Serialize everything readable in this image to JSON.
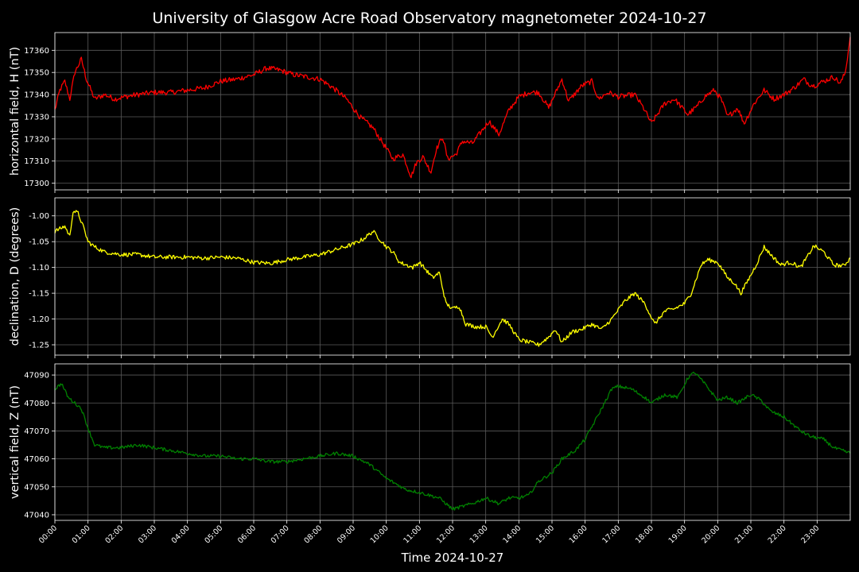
{
  "chart_data": {
    "type": "line",
    "title": "University of Glasgow Acre Road Observatory magnetometer 2024-10-27",
    "xlabel": "Time 2024-10-27",
    "x_ticks": [
      "00:00",
      "01:00",
      "02:00",
      "03:00",
      "04:00",
      "05:00",
      "06:00",
      "07:00",
      "08:00",
      "09:00",
      "10:00",
      "11:00",
      "12:00",
      "13:00",
      "14:00",
      "15:00",
      "16:00",
      "17:00",
      "18:00",
      "19:00",
      "20:00",
      "21:00",
      "22:00",
      "23:00"
    ],
    "xlim_hours": [
      0,
      24
    ],
    "grid": true,
    "background": "#000000",
    "panels": [
      {
        "ylabel": "horizontal field, H (nT)",
        "color": "#ff0000",
        "ylim": [
          17297,
          17368
        ],
        "yticks": [
          "17300",
          "17310",
          "17320",
          "17330",
          "17340",
          "17350",
          "17360"
        ],
        "noise": 1.2,
        "series": [
          {
            "x": 0.0,
            "y": 17333
          },
          {
            "x": 0.15,
            "y": 17342
          },
          {
            "x": 0.3,
            "y": 17346
          },
          {
            "x": 0.45,
            "y": 17338
          },
          {
            "x": 0.6,
            "y": 17350
          },
          {
            "x": 0.8,
            "y": 17356
          },
          {
            "x": 0.95,
            "y": 17347
          },
          {
            "x": 1.2,
            "y": 17338
          },
          {
            "x": 1.5,
            "y": 17340
          },
          {
            "x": 1.8,
            "y": 17338
          },
          {
            "x": 2.1,
            "y": 17339
          },
          {
            "x": 2.5,
            "y": 17340
          },
          {
            "x": 3.0,
            "y": 17341
          },
          {
            "x": 3.5,
            "y": 17341
          },
          {
            "x": 4.0,
            "y": 17342
          },
          {
            "x": 4.5,
            "y": 17343
          },
          {
            "x": 5.0,
            "y": 17346
          },
          {
            "x": 5.5,
            "y": 17347
          },
          {
            "x": 6.0,
            "y": 17349
          },
          {
            "x": 6.4,
            "y": 17352
          },
          {
            "x": 6.8,
            "y": 17351
          },
          {
            "x": 7.2,
            "y": 17349
          },
          {
            "x": 7.6,
            "y": 17348
          },
          {
            "x": 8.0,
            "y": 17347
          },
          {
            "x": 8.4,
            "y": 17343
          },
          {
            "x": 8.8,
            "y": 17338
          },
          {
            "x": 9.2,
            "y": 17330
          },
          {
            "x": 9.6,
            "y": 17325
          },
          {
            "x": 9.9,
            "y": 17318
          },
          {
            "x": 10.2,
            "y": 17311
          },
          {
            "x": 10.5,
            "y": 17313
          },
          {
            "x": 10.75,
            "y": 17303
          },
          {
            "x": 10.9,
            "y": 17309
          },
          {
            "x": 11.1,
            "y": 17312
          },
          {
            "x": 11.35,
            "y": 17305
          },
          {
            "x": 11.5,
            "y": 17315
          },
          {
            "x": 11.7,
            "y": 17321
          },
          {
            "x": 11.85,
            "y": 17311
          },
          {
            "x": 12.1,
            "y": 17313
          },
          {
            "x": 12.3,
            "y": 17319
          },
          {
            "x": 12.6,
            "y": 17318
          },
          {
            "x": 12.9,
            "y": 17324
          },
          {
            "x": 13.1,
            "y": 17328
          },
          {
            "x": 13.4,
            "y": 17322
          },
          {
            "x": 13.7,
            "y": 17333
          },
          {
            "x": 14.0,
            "y": 17339
          },
          {
            "x": 14.3,
            "y": 17341
          },
          {
            "x": 14.6,
            "y": 17341
          },
          {
            "x": 14.9,
            "y": 17334
          },
          {
            "x": 15.3,
            "y": 17347
          },
          {
            "x": 15.5,
            "y": 17337
          },
          {
            "x": 15.9,
            "y": 17344
          },
          {
            "x": 16.2,
            "y": 17346
          },
          {
            "x": 16.4,
            "y": 17338
          },
          {
            "x": 16.7,
            "y": 17341
          },
          {
            "x": 17.0,
            "y": 17339
          },
          {
            "x": 17.5,
            "y": 17340
          },
          {
            "x": 17.8,
            "y": 17333
          },
          {
            "x": 18.0,
            "y": 17327
          },
          {
            "x": 18.4,
            "y": 17336
          },
          {
            "x": 18.7,
            "y": 17338
          },
          {
            "x": 19.1,
            "y": 17331
          },
          {
            "x": 19.4,
            "y": 17335
          },
          {
            "x": 19.6,
            "y": 17339
          },
          {
            "x": 19.9,
            "y": 17342
          },
          {
            "x": 20.1,
            "y": 17338
          },
          {
            "x": 20.3,
            "y": 17330
          },
          {
            "x": 20.6,
            "y": 17334
          },
          {
            "x": 20.8,
            "y": 17327
          },
          {
            "x": 21.1,
            "y": 17336
          },
          {
            "x": 21.4,
            "y": 17342
          },
          {
            "x": 21.7,
            "y": 17338
          },
          {
            "x": 22.0,
            "y": 17340
          },
          {
            "x": 22.3,
            "y": 17343
          },
          {
            "x": 22.6,
            "y": 17347
          },
          {
            "x": 22.75,
            "y": 17345
          },
          {
            "x": 22.9,
            "y": 17344
          },
          {
            "x": 23.2,
            "y": 17346
          },
          {
            "x": 23.5,
            "y": 17348
          },
          {
            "x": 23.7,
            "y": 17345
          },
          {
            "x": 23.85,
            "y": 17350
          },
          {
            "x": 24.0,
            "y": 17366
          }
        ]
      },
      {
        "ylabel": "declination, D (degrees)",
        "color": "#ffff00",
        "ylim": [
          -1.27,
          -0.965
        ],
        "yticks": [
          "-1.00",
          "-1.05",
          "-1.10",
          "-1.15",
          "-1.20",
          "-1.25"
        ],
        "noise": 0.004,
        "series": [
          {
            "x": 0.0,
            "y": -1.03
          },
          {
            "x": 0.3,
            "y": -1.02
          },
          {
            "x": 0.45,
            "y": -1.04
          },
          {
            "x": 0.55,
            "y": -0.99
          },
          {
            "x": 0.7,
            "y": -0.995
          },
          {
            "x": 0.85,
            "y": -1.02
          },
          {
            "x": 1.0,
            "y": -1.05
          },
          {
            "x": 1.2,
            "y": -1.06
          },
          {
            "x": 1.5,
            "y": -1.07
          },
          {
            "x": 2.0,
            "y": -1.075
          },
          {
            "x": 2.5,
            "y": -1.075
          },
          {
            "x": 3.0,
            "y": -1.08
          },
          {
            "x": 3.5,
            "y": -1.08
          },
          {
            "x": 4.0,
            "y": -1.08
          },
          {
            "x": 4.5,
            "y": -1.082
          },
          {
            "x": 5.0,
            "y": -1.08
          },
          {
            "x": 5.5,
            "y": -1.082
          },
          {
            "x": 6.0,
            "y": -1.09
          },
          {
            "x": 6.5,
            "y": -1.092
          },
          {
            "x": 7.0,
            "y": -1.085
          },
          {
            "x": 7.5,
            "y": -1.08
          },
          {
            "x": 8.0,
            "y": -1.075
          },
          {
            "x": 8.5,
            "y": -1.065
          },
          {
            "x": 9.0,
            "y": -1.055
          },
          {
            "x": 9.3,
            "y": -1.045
          },
          {
            "x": 9.6,
            "y": -1.03
          },
          {
            "x": 9.8,
            "y": -1.045
          },
          {
            "x": 10.0,
            "y": -1.06
          },
          {
            "x": 10.2,
            "y": -1.07
          },
          {
            "x": 10.4,
            "y": -1.09
          },
          {
            "x": 10.6,
            "y": -1.095
          },
          {
            "x": 10.8,
            "y": -1.1
          },
          {
            "x": 11.0,
            "y": -1.09
          },
          {
            "x": 11.2,
            "y": -1.105
          },
          {
            "x": 11.4,
            "y": -1.12
          },
          {
            "x": 11.6,
            "y": -1.11
          },
          {
            "x": 11.8,
            "y": -1.17
          },
          {
            "x": 12.0,
            "y": -1.18
          },
          {
            "x": 12.2,
            "y": -1.175
          },
          {
            "x": 12.4,
            "y": -1.21
          },
          {
            "x": 12.7,
            "y": -1.215
          },
          {
            "x": 13.0,
            "y": -1.215
          },
          {
            "x": 13.2,
            "y": -1.235
          },
          {
            "x": 13.5,
            "y": -1.2
          },
          {
            "x": 13.7,
            "y": -1.21
          },
          {
            "x": 14.0,
            "y": -1.24
          },
          {
            "x": 14.3,
            "y": -1.245
          },
          {
            "x": 14.6,
            "y": -1.25
          },
          {
            "x": 14.9,
            "y": -1.235
          },
          {
            "x": 15.1,
            "y": -1.22
          },
          {
            "x": 15.3,
            "y": -1.245
          },
          {
            "x": 15.6,
            "y": -1.225
          },
          {
            "x": 15.9,
            "y": -1.22
          },
          {
            "x": 16.2,
            "y": -1.21
          },
          {
            "x": 16.5,
            "y": -1.22
          },
          {
            "x": 16.8,
            "y": -1.2
          },
          {
            "x": 17.2,
            "y": -1.165
          },
          {
            "x": 17.5,
            "y": -1.15
          },
          {
            "x": 17.8,
            "y": -1.17
          },
          {
            "x": 18.1,
            "y": -1.21
          },
          {
            "x": 18.4,
            "y": -1.185
          },
          {
            "x": 18.7,
            "y": -1.18
          },
          {
            "x": 19.0,
            "y": -1.17
          },
          {
            "x": 19.2,
            "y": -1.15
          },
          {
            "x": 19.5,
            "y": -1.095
          },
          {
            "x": 19.7,
            "y": -1.085
          },
          {
            "x": 20.0,
            "y": -1.09
          },
          {
            "x": 20.3,
            "y": -1.12
          },
          {
            "x": 20.5,
            "y": -1.13
          },
          {
            "x": 20.7,
            "y": -1.15
          },
          {
            "x": 21.0,
            "y": -1.115
          },
          {
            "x": 21.2,
            "y": -1.09
          },
          {
            "x": 21.4,
            "y": -1.06
          },
          {
            "x": 21.6,
            "y": -1.075
          },
          {
            "x": 21.9,
            "y": -1.095
          },
          {
            "x": 22.2,
            "y": -1.09
          },
          {
            "x": 22.5,
            "y": -1.1
          },
          {
            "x": 22.7,
            "y": -1.08
          },
          {
            "x": 22.9,
            "y": -1.058
          },
          {
            "x": 23.2,
            "y": -1.07
          },
          {
            "x": 23.5,
            "y": -1.095
          },
          {
            "x": 23.8,
            "y": -1.097
          },
          {
            "x": 24.0,
            "y": -1.082
          }
        ]
      },
      {
        "ylabel": "vertical field, Z (nT)",
        "color": "#008000",
        "ylim": [
          47038,
          47094
        ],
        "yticks": [
          "47040",
          "47050",
          "47060",
          "47070",
          "47080",
          "47090"
        ],
        "noise": 0.6,
        "series": [
          {
            "x": 0.0,
            "y": 47085
          },
          {
            "x": 0.2,
            "y": 47087
          },
          {
            "x": 0.4,
            "y": 47082
          },
          {
            "x": 0.6,
            "y": 47080
          },
          {
            "x": 0.8,
            "y": 47078
          },
          {
            "x": 1.0,
            "y": 47071
          },
          {
            "x": 1.2,
            "y": 47065
          },
          {
            "x": 1.5,
            "y": 47064
          },
          {
            "x": 2.0,
            "y": 47064
          },
          {
            "x": 2.5,
            "y": 47065
          },
          {
            "x": 3.0,
            "y": 47064
          },
          {
            "x": 3.5,
            "y": 47063
          },
          {
            "x": 4.0,
            "y": 47062
          },
          {
            "x": 4.5,
            "y": 47061
          },
          {
            "x": 5.0,
            "y": 47061
          },
          {
            "x": 5.5,
            "y": 47060
          },
          {
            "x": 6.0,
            "y": 47060
          },
          {
            "x": 6.5,
            "y": 47059
          },
          {
            "x": 7.0,
            "y": 47059
          },
          {
            "x": 7.5,
            "y": 47060
          },
          {
            "x": 8.0,
            "y": 47061
          },
          {
            "x": 8.5,
            "y": 47062
          },
          {
            "x": 9.0,
            "y": 47061
          },
          {
            "x": 9.5,
            "y": 47058
          },
          {
            "x": 10.0,
            "y": 47053
          },
          {
            "x": 10.3,
            "y": 47051
          },
          {
            "x": 10.6,
            "y": 47049
          },
          {
            "x": 11.0,
            "y": 47048
          },
          {
            "x": 11.3,
            "y": 47047
          },
          {
            "x": 11.6,
            "y": 47046
          },
          {
            "x": 12.0,
            "y": 47042
          },
          {
            "x": 12.3,
            "y": 47043
          },
          {
            "x": 12.6,
            "y": 47044
          },
          {
            "x": 13.0,
            "y": 47046
          },
          {
            "x": 13.4,
            "y": 47044
          },
          {
            "x": 13.7,
            "y": 47046
          },
          {
            "x": 14.0,
            "y": 47046
          },
          {
            "x": 14.3,
            "y": 47047
          },
          {
            "x": 14.6,
            "y": 47052
          },
          {
            "x": 15.0,
            "y": 47055
          },
          {
            "x": 15.3,
            "y": 47060
          },
          {
            "x": 15.7,
            "y": 47063
          },
          {
            "x": 16.0,
            "y": 47067
          },
          {
            "x": 16.5,
            "y": 47078
          },
          {
            "x": 16.8,
            "y": 47085
          },
          {
            "x": 17.0,
            "y": 47086
          },
          {
            "x": 17.4,
            "y": 47085
          },
          {
            "x": 17.8,
            "y": 47082
          },
          {
            "x": 18.0,
            "y": 47080
          },
          {
            "x": 18.4,
            "y": 47083
          },
          {
            "x": 18.8,
            "y": 47082
          },
          {
            "x": 19.1,
            "y": 47089
          },
          {
            "x": 19.3,
            "y": 47091
          },
          {
            "x": 19.6,
            "y": 47087
          },
          {
            "x": 20.0,
            "y": 47081
          },
          {
            "x": 20.3,
            "y": 47082
          },
          {
            "x": 20.6,
            "y": 47080
          },
          {
            "x": 21.0,
            "y": 47083
          },
          {
            "x": 21.3,
            "y": 47081
          },
          {
            "x": 21.6,
            "y": 47077
          },
          {
            "x": 22.0,
            "y": 47075
          },
          {
            "x": 22.5,
            "y": 47070
          },
          {
            "x": 22.8,
            "y": 47068
          },
          {
            "x": 23.2,
            "y": 47067
          },
          {
            "x": 23.5,
            "y": 47064
          },
          {
            "x": 24.0,
            "y": 47062
          }
        ]
      }
    ]
  }
}
